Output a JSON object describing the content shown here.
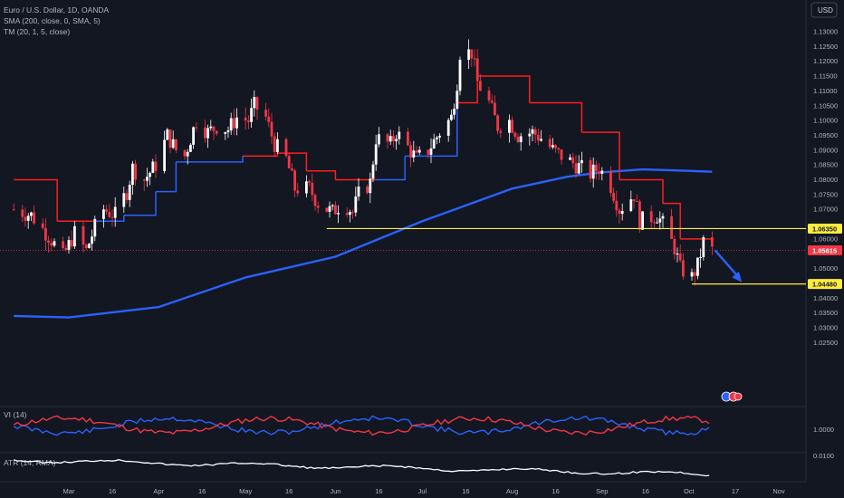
{
  "currency_button": "USD",
  "legend": {
    "symbol": "Euro / U.S. Dollar, 1D, OANDA",
    "sma": "SMA (200, close, 0, SMA, 5)",
    "tm": "TM (20, 1, 5, close)"
  },
  "panels": {
    "vi_label": "VI (14)",
    "vi_tick": "1.0000",
    "atr_label": "ATR (14, RMA)",
    "atr_tick": "0.0100"
  },
  "price_tags": {
    "resistance": "1.06350",
    "current": "1.05615",
    "target": "1.04480"
  },
  "colors": {
    "background": "#131722",
    "bull_candle": "#ffffff",
    "bear_candle": "#f23645",
    "sma_line": "#2962ff",
    "tm_line": "#ff1e1e",
    "level_line": "#ffeb3b",
    "vi_plus": "#2962ff",
    "vi_minus": "#f23645",
    "atr_line": "#ffffff",
    "arrow": "#2962ff"
  },
  "chart_data": {
    "type": "candlestick",
    "title": "Euro / U.S. Dollar, 1D, OANDA",
    "price_axis": {
      "ticks": [
        1.13,
        1.125,
        1.12,
        1.115,
        1.11,
        1.105,
        1.1,
        1.095,
        1.09,
        1.085,
        1.08,
        1.075,
        1.07,
        1.065,
        1.06,
        1.055,
        1.05,
        1.045,
        1.04,
        1.035,
        1.03,
        1.025
      ],
      "tick_labels": [
        "1.13000",
        "1.12500",
        "1.12000",
        "1.11500",
        "1.11000",
        "1.10500",
        "1.10000",
        "1.09500",
        "1.09000",
        "1.08500",
        "1.08000",
        "1.07500",
        "1.07000",
        "",
        "1.06000",
        "",
        "1.05000",
        "",
        "1.04000",
        "1.03500",
        "1.03000",
        "1.02500"
      ]
    },
    "time_axis": {
      "labels": [
        "Mar",
        "16",
        "Apr",
        "16",
        "May",
        "16",
        "Jun",
        "16",
        "Jul",
        "16",
        "Aug",
        "16",
        "Sep",
        "16",
        "Oct",
        "17",
        "Nov"
      ],
      "dates": [
        "2023-03-01",
        "2023-03-16",
        "2023-04-01",
        "2023-04-16",
        "2023-05-01",
        "2023-05-16",
        "2023-06-01",
        "2023-06-16",
        "2023-07-01",
        "2023-07-16",
        "2023-08-01",
        "2023-08-16",
        "2023-09-01",
        "2023-09-16",
        "2023-10-01",
        "2023-10-17",
        "2023-11-01"
      ]
    },
    "close_path": [
      [
        "2023-02-10",
        1.07
      ],
      [
        "2023-02-16",
        1.068
      ],
      [
        "2023-02-22",
        1.061
      ],
      [
        "2023-02-27",
        1.054
      ],
      [
        "2023-03-03",
        1.062
      ],
      [
        "2023-03-07",
        1.056
      ],
      [
        "2023-03-10",
        1.064
      ],
      [
        "2023-03-13",
        1.07
      ],
      [
        "2023-03-17",
        1.068
      ],
      [
        "2023-03-21",
        1.076
      ],
      [
        "2023-03-23",
        1.084
      ],
      [
        "2023-03-27",
        1.08
      ],
      [
        "2023-03-31",
        1.085
      ],
      [
        "2023-04-04",
        1.095
      ],
      [
        "2023-04-07",
        1.09
      ],
      [
        "2023-04-10",
        1.088
      ],
      [
        "2023-04-14",
        1.1
      ],
      [
        "2023-04-18",
        1.096
      ],
      [
        "2023-04-21",
        1.098
      ],
      [
        "2023-04-25",
        1.097
      ],
      [
        "2023-04-28",
        1.101
      ],
      [
        "2023-05-02",
        1.1
      ],
      [
        "2023-05-04",
        1.105
      ],
      [
        "2023-05-08",
        1.101
      ],
      [
        "2023-05-11",
        1.092
      ],
      [
        "2023-05-15",
        1.087
      ],
      [
        "2023-05-18",
        1.077
      ],
      [
        "2023-05-23",
        1.077
      ],
      [
        "2023-05-26",
        1.072
      ],
      [
        "2023-05-31",
        1.069
      ],
      [
        "2023-06-02",
        1.071
      ],
      [
        "2023-06-05",
        1.071
      ],
      [
        "2023-06-07",
        1.069
      ],
      [
        "2023-06-09",
        1.075
      ],
      [
        "2023-06-13",
        1.079
      ],
      [
        "2023-06-15",
        1.094
      ],
      [
        "2023-06-20",
        1.092
      ],
      [
        "2023-06-22",
        1.096
      ],
      [
        "2023-06-26",
        1.091
      ],
      [
        "2023-06-29",
        1.087
      ],
      [
        "2023-07-03",
        1.09
      ],
      [
        "2023-07-07",
        1.096
      ],
      [
        "2023-07-11",
        1.101
      ],
      [
        "2023-07-13",
        1.113
      ],
      [
        "2023-07-14",
        1.123
      ],
      [
        "2023-07-18",
        1.123
      ],
      [
        "2023-07-20",
        1.113
      ],
      [
        "2023-07-24",
        1.106
      ],
      [
        "2023-07-27",
        1.098
      ],
      [
        "2023-07-31",
        1.1
      ],
      [
        "2023-08-03",
        1.095
      ],
      [
        "2023-08-08",
        1.096
      ],
      [
        "2023-08-11",
        1.094
      ],
      [
        "2023-08-15",
        1.09
      ],
      [
        "2023-08-18",
        1.088
      ],
      [
        "2023-08-23",
        1.085
      ],
      [
        "2023-08-28",
        1.082
      ],
      [
        "2023-08-31",
        1.084
      ],
      [
        "2023-09-04",
        1.078
      ],
      [
        "2023-09-07",
        1.07
      ],
      [
        "2023-09-12",
        1.075
      ],
      [
        "2023-09-14",
        1.066
      ],
      [
        "2023-09-20",
        1.068
      ],
      [
        "2023-09-22",
        1.065
      ],
      [
        "2023-09-26",
        1.057
      ],
      [
        "2023-09-28",
        1.05
      ],
      [
        "2023-10-02",
        1.047
      ],
      [
        "2023-10-04",
        1.051
      ],
      [
        "2023-10-06",
        1.059
      ],
      [
        "2023-10-09",
        1.0562
      ]
    ],
    "sma_200": [
      [
        "2023-02-10",
        1.034
      ],
      [
        "2023-03-01",
        1.0335
      ],
      [
        "2023-04-01",
        1.037
      ],
      [
        "2023-05-01",
        1.047
      ],
      [
        "2023-06-01",
        1.054
      ],
      [
        "2023-07-01",
        1.066
      ],
      [
        "2023-08-01",
        1.077
      ],
      [
        "2023-08-20",
        1.081
      ],
      [
        "2023-09-01",
        1.0825
      ],
      [
        "2023-09-15",
        1.0835
      ],
      [
        "2023-10-01",
        1.083
      ],
      [
        "2023-10-09",
        1.0827
      ]
    ],
    "trend_magic": [
      [
        "2023-02-10",
        1.08,
        "red"
      ],
      [
        "2023-02-25",
        1.066,
        "red"
      ],
      [
        "2023-03-10",
        1.066,
        "red"
      ],
      [
        "2023-03-20",
        1.068,
        "blue"
      ],
      [
        "2023-03-31",
        1.076,
        "blue"
      ],
      [
        "2023-04-07",
        1.086,
        "blue"
      ],
      [
        "2023-04-30",
        1.088,
        "blue"
      ],
      [
        "2023-05-12",
        1.089,
        "red"
      ],
      [
        "2023-05-22",
        1.083,
        "red"
      ],
      [
        "2023-06-01",
        1.08,
        "red"
      ],
      [
        "2023-06-15",
        1.08,
        "red"
      ],
      [
        "2023-06-25",
        1.088,
        "blue"
      ],
      [
        "2023-07-13",
        1.106,
        "blue"
      ],
      [
        "2023-07-20",
        1.115,
        "red"
      ],
      [
        "2023-08-07",
        1.106,
        "red"
      ],
      [
        "2023-08-25",
        1.096,
        "red"
      ],
      [
        "2023-09-07",
        1.08,
        "red"
      ],
      [
        "2023-09-22",
        1.072,
        "red"
      ],
      [
        "2023-09-28",
        1.06,
        "red"
      ],
      [
        "2023-10-09",
        1.058,
        "red"
      ]
    ],
    "levels": [
      {
        "label": "1.06350",
        "value": 1.0635,
        "from": "2023-05-29"
      },
      {
        "label": "1.04480",
        "value": 1.0448,
        "from": "2023-10-02"
      },
      {
        "label": "1.05615",
        "value": 1.05615,
        "from": "2023-02-10"
      }
    ],
    "projection_arrow": {
      "from": [
        "2023-10-09",
        1.0562
      ],
      "to": [
        "2023-10-13",
        1.0448
      ]
    },
    "vi_axis_ticks": [
      1.0
    ],
    "atr_axis_ticks": [
      0.01
    ]
  }
}
